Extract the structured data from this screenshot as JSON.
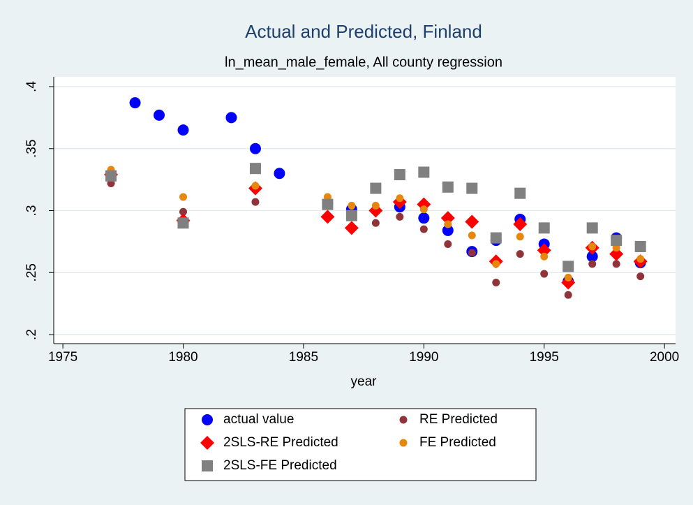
{
  "chart_data": {
    "type": "scatter",
    "title": "Actual and Predicted, Finland",
    "subtitle": "ln_mean_male_female, All county regression",
    "x_label": "year",
    "x": [
      1977,
      1978,
      1979,
      1980,
      1981,
      1982,
      1983,
      1984,
      1985,
      1986,
      1987,
      1988,
      1989,
      1990,
      1991,
      1992,
      1993,
      1994,
      1995,
      1996,
      1997,
      1998,
      1999
    ],
    "series": [
      {
        "name": "actual value",
        "color": "#0000ff",
        "marker": "circle",
        "values": [
          null,
          0.387,
          0.377,
          0.365,
          null,
          0.375,
          0.35,
          0.33,
          null,
          0.306,
          0.301,
          null,
          0.303,
          0.294,
          0.284,
          0.267,
          0.276,
          0.293,
          0.273,
          0.243,
          0.263,
          0.278,
          0.258
        ]
      },
      {
        "name": "RE Predicted",
        "color": "#8f3439",
        "marker": "small-circle",
        "values": [
          0.322,
          null,
          null,
          0.299,
          null,
          null,
          0.307,
          null,
          null,
          0.306,
          0.298,
          0.29,
          0.295,
          0.285,
          0.273,
          0.266,
          0.242,
          0.265,
          0.249,
          0.232,
          0.257,
          0.257,
          0.247
        ]
      },
      {
        "name": "2SLS-RE Predicted",
        "color": "#ff0000",
        "marker": "diamond",
        "values": [
          0.329,
          null,
          null,
          0.292,
          null,
          null,
          0.318,
          null,
          null,
          0.295,
          0.286,
          0.3,
          0.307,
          0.305,
          0.294,
          0.291,
          0.259,
          0.289,
          0.268,
          0.242,
          0.27,
          0.265,
          0.259
        ]
      },
      {
        "name": "FE Predicted",
        "color": "#e8870e",
        "marker": "small-circle",
        "values": [
          0.333,
          null,
          null,
          0.311,
          null,
          null,
          0.32,
          null,
          null,
          0.311,
          0.304,
          0.304,
          0.31,
          0.301,
          0.289,
          0.28,
          0.257,
          0.279,
          0.263,
          0.246,
          0.271,
          0.27,
          0.261
        ]
      },
      {
        "name": "2SLS-FE Predicted",
        "color": "#808080",
        "marker": "square",
        "values": [
          0.328,
          null,
          null,
          0.29,
          null,
          null,
          0.334,
          null,
          null,
          0.305,
          0.296,
          0.318,
          0.329,
          0.331,
          0.319,
          0.318,
          0.278,
          0.314,
          0.286,
          0.255,
          0.286,
          0.276,
          0.271
        ]
      }
    ],
    "xlim": [
      1974.62,
      2000.46
    ],
    "xticks": [
      1975,
      1980,
      1985,
      1990,
      1995,
      2000
    ],
    "ylim": [
      0.1927,
      0.4079
    ],
    "yticks": [
      {
        "value": 0.2,
        "label": ".2"
      },
      {
        "value": 0.25,
        "label": ".25"
      },
      {
        "value": 0.3,
        "label": ".3"
      },
      {
        "value": 0.35,
        "label": ".35"
      },
      {
        "value": 0.4,
        "label": ".4"
      }
    ],
    "grid": true,
    "legend_columns": 2
  }
}
